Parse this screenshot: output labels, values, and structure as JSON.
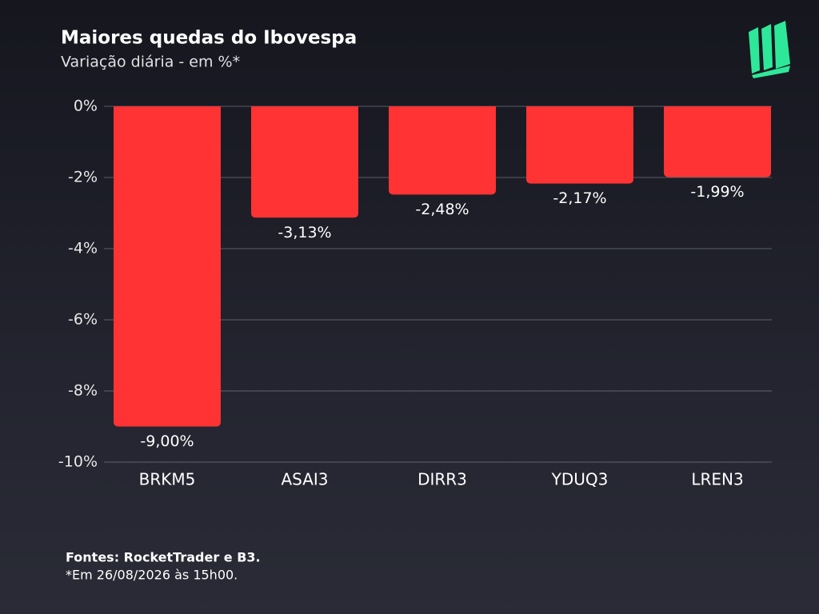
{
  "chart_data": {
    "type": "bar",
    "title": "Maiores quedas do Ibovespa",
    "subtitle": "Variação diária - em %*",
    "categories": [
      "BRKM5",
      "ASAI3",
      "DIRR3",
      "YDUQ3",
      "LREN3"
    ],
    "values": [
      -9.0,
      -3.13,
      -2.48,
      -2.17,
      -1.99
    ],
    "value_labels": [
      "-9,00%",
      "-3,13%",
      "-2,48%",
      "-2,17%",
      "-1,99%"
    ],
    "color": "#ff3333",
    "ylim": [
      -10,
      0
    ],
    "yticks": [
      {
        "value": 0,
        "label": "0%"
      },
      {
        "value": -2,
        "label": "-2%"
      },
      {
        "value": -4,
        "label": "-4%"
      },
      {
        "value": -6,
        "label": "-6%"
      },
      {
        "value": -8,
        "label": "-8%"
      },
      {
        "value": -10,
        "label": "-10%"
      }
    ],
    "grid": true,
    "source": "Fontes: RocketTrader e B3.",
    "note": "*Em 26/08/2026 às 15h00."
  }
}
